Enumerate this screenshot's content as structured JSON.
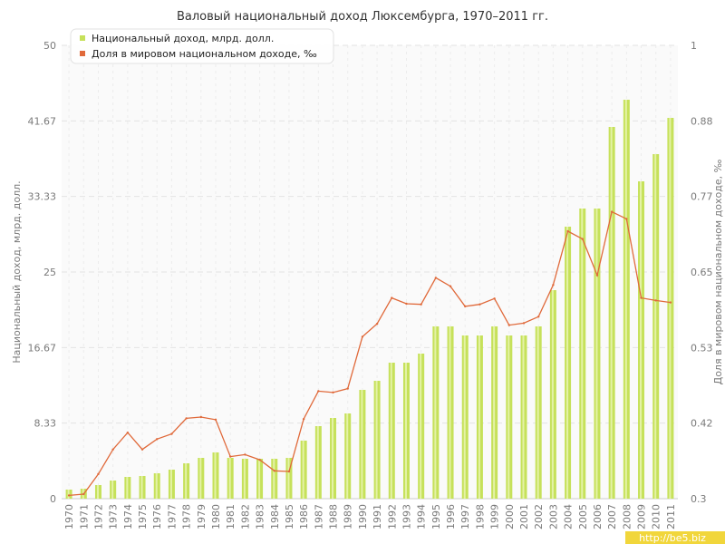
{
  "chart_data": {
    "type": "bar",
    "title": "Валовый национальный доход Люксембурга, 1970–2011 гг.",
    "categories": [
      "1970",
      "1971",
      "1972",
      "1973",
      "1974",
      "1975",
      "1976",
      "1977",
      "1978",
      "1979",
      "1980",
      "1981",
      "1982",
      "1983",
      "1984",
      "1985",
      "1986",
      "1987",
      "1988",
      "1989",
      "1990",
      "1991",
      "1992",
      "1993",
      "1994",
      "1995",
      "1996",
      "1997",
      "1998",
      "1999",
      "2000",
      "2001",
      "2002",
      "2003",
      "2004",
      "2005",
      "2006",
      "2007",
      "2008",
      "2009",
      "2010",
      "2011"
    ],
    "ylabel_left": "Национальный доход, млрд. долл.",
    "ylabel_right": "Доля в мировом национальном доходе, ‰",
    "y_left_range": [
      0,
      50
    ],
    "y_left_ticks": [
      "0",
      "8.33",
      "16.67",
      "25",
      "33.33",
      "41.67",
      "50"
    ],
    "y_right_range": [
      0.3,
      1
    ],
    "y_right_ticks": [
      "0.3",
      "0.42",
      "0.53",
      "0.65",
      "0.77",
      "0.88",
      "1"
    ],
    "grid": true,
    "legend_position": "top-left",
    "series": [
      {
        "name": "Национальный доход, млрд. долл.",
        "type": "bar",
        "axis": "left",
        "color": "#c6e15a",
        "values": [
          1.0,
          1.1,
          1.5,
          2.0,
          2.4,
          2.5,
          2.8,
          3.2,
          3.9,
          4.5,
          5.1,
          4.5,
          4.4,
          4.4,
          4.4,
          4.5,
          6.4,
          8.0,
          8.9,
          9.4,
          12.0,
          13.0,
          15.0,
          15.0,
          16.0,
          19.0,
          19.0,
          18.0,
          18.0,
          19.0,
          18.0,
          18.0,
          19.0,
          23.0,
          30.0,
          32.0,
          32.0,
          41.0,
          44.0,
          35.0,
          38.0,
          42.0
        ]
      },
      {
        "name": "Доля в мировом национальном доходе, ‰",
        "type": "line",
        "axis": "right",
        "color": "#e0693a",
        "values": [
          0.305,
          0.307,
          0.338,
          0.376,
          0.402,
          0.376,
          0.392,
          0.4,
          0.424,
          0.426,
          0.422,
          0.365,
          0.368,
          0.36,
          0.343,
          0.342,
          0.423,
          0.466,
          0.464,
          0.47,
          0.55,
          0.57,
          0.61,
          0.601,
          0.6,
          0.641,
          0.628,
          0.597,
          0.6,
          0.609,
          0.568,
          0.571,
          0.581,
          0.63,
          0.713,
          0.701,
          0.645,
          0.743,
          0.732,
          0.61,
          0.606,
          0.603
        ]
      }
    ]
  },
  "watermark": "http://be5.biz",
  "colors": {
    "bar": "#c6e15a",
    "line": "#e0693a",
    "watermark_bg": "#f1d63b"
  }
}
